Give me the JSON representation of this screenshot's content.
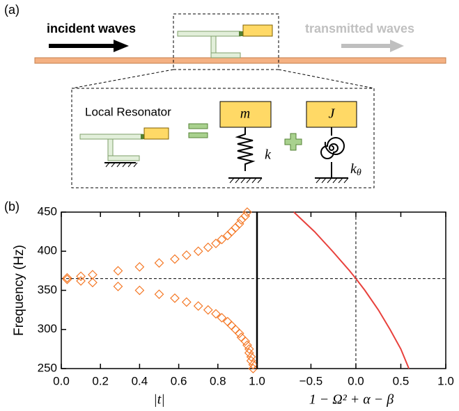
{
  "panel_a": {
    "label": "(a)",
    "incident": "incident waves",
    "transmitted": "transmitted waves",
    "inset_title": "Local Resonator",
    "mass": "m",
    "stiffness": "k",
    "inertia": "J",
    "rot_stiffness": "k",
    "rot_stiffness_sub": "θ"
  },
  "panel_b_label": "(b)",
  "chart_data": [
    {
      "type": "scatter",
      "y_label": "Frequency (Hz)",
      "x_label": "|t|",
      "color": "#f47521",
      "x": [
        0.98,
        0.98,
        0.97,
        0.97,
        0.96,
        0.96,
        0.95,
        0.94,
        0.92,
        0.91,
        0.89,
        0.87,
        0.85,
        0.82,
        0.79,
        0.75,
        0.7,
        0.64,
        0.58,
        0.5,
        0.4,
        0.29,
        0.16,
        0.1,
        0.03,
        0.03,
        0.1,
        0.16,
        0.29,
        0.4,
        0.5,
        0.58,
        0.64,
        0.7,
        0.75,
        0.79,
        0.82,
        0.85,
        0.87,
        0.89,
        0.91,
        0.92,
        0.94,
        0.95
      ],
      "values": [
        250,
        255,
        260,
        265,
        270,
        275,
        280,
        285,
        290,
        295,
        300,
        305,
        310,
        315,
        320,
        325,
        330,
        335,
        340,
        345,
        350,
        355,
        360,
        362,
        364,
        366,
        368,
        370,
        375,
        380,
        385,
        390,
        395,
        400,
        405,
        410,
        415,
        420,
        425,
        430,
        435,
        440,
        445,
        450
      ],
      "xlim": [
        0,
        1
      ],
      "ylim": [
        250,
        450
      ],
      "xticks": [
        {
          "value": 0,
          "label": "0.0"
        },
        0.2,
        0.4,
        0.6,
        0.8,
        {
          "value": 1,
          "label": "1.0"
        }
      ],
      "yticks": [
        250,
        300,
        350,
        400,
        450
      ],
      "vlines": [
        1
      ],
      "hlines": [
        365
      ]
    },
    {
      "type": "line",
      "x_label": "1 − Ω² + α − β",
      "color": "#e8413c",
      "x": [
        0.59,
        0.5,
        0.38,
        0.25,
        0.1,
        0,
        -0.07,
        -0.26,
        -0.46,
        -0.69
      ],
      "values": [
        250,
        275,
        300,
        325,
        350,
        365,
        375,
        400,
        425,
        450
      ],
      "xlim": [
        -1.1,
        1
      ],
      "ylim": [
        250,
        450
      ],
      "xticks": [
        {
          "value": -0.5,
          "label": "−0.5"
        },
        {
          "value": 0,
          "label": "0.0"
        },
        0.5,
        {
          "value": 1,
          "label": "1.0"
        }
      ],
      "vlines": [
        0
      ],
      "hlines": [
        365
      ]
    }
  ]
}
